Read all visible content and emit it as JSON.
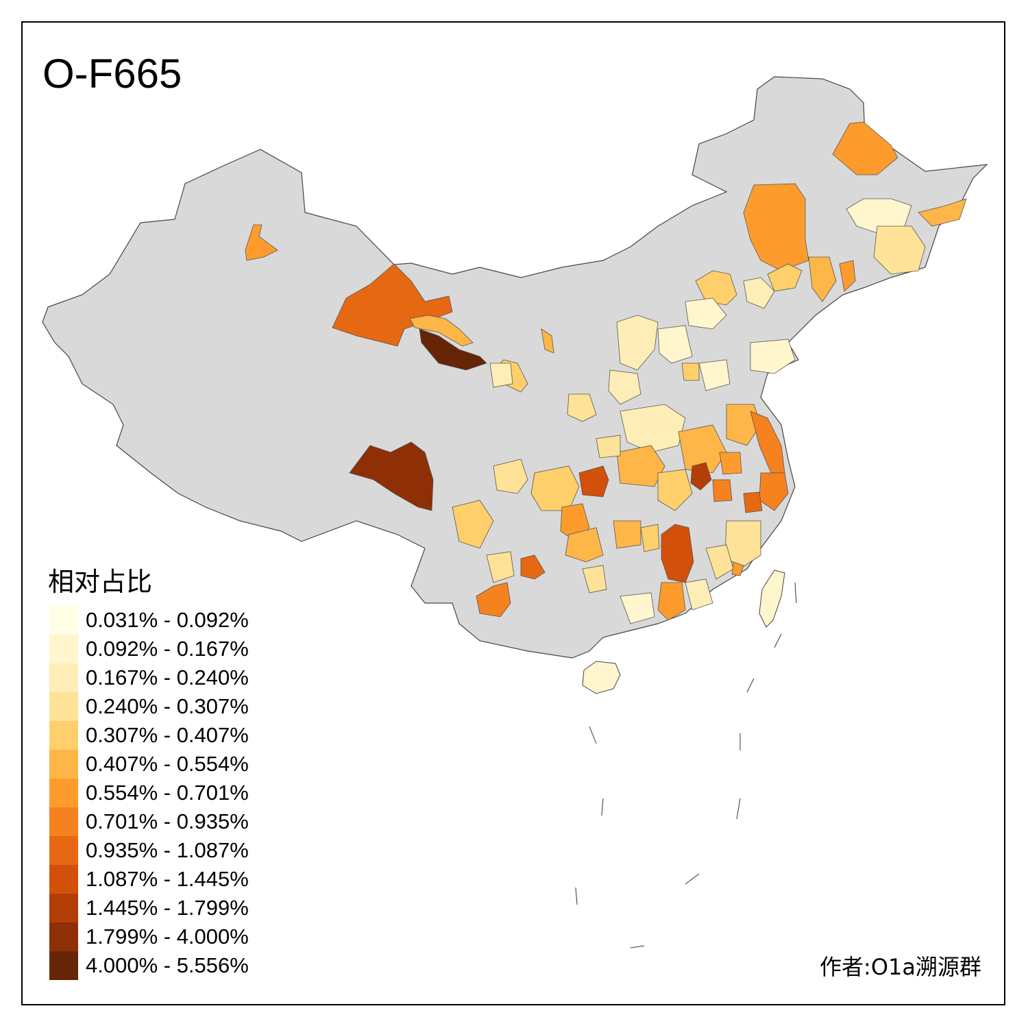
{
  "title": "O-F665",
  "legend": {
    "title": "相对占比",
    "classes": [
      {
        "label": "0.031% - 0.092%",
        "color": "#FFFFE5"
      },
      {
        "label": "0.092% - 0.167%",
        "color": "#FFF6CE"
      },
      {
        "label": "0.167% - 0.240%",
        "color": "#FEEDB6"
      },
      {
        "label": "0.240% - 0.307%",
        "color": "#FEE297"
      },
      {
        "label": "0.307% - 0.407%",
        "color": "#FECF6B"
      },
      {
        "label": "0.407% - 0.554%",
        "color": "#FEB648"
      },
      {
        "label": "0.554% - 0.701%",
        "color": "#FD9C2D"
      },
      {
        "label": "0.701% - 0.935%",
        "color": "#F5811F"
      },
      {
        "label": "0.935% - 1.087%",
        "color": "#E66813"
      },
      {
        "label": "1.087% - 1.445%",
        "color": "#D25009"
      },
      {
        "label": "1.445% - 1.799%",
        "color": "#B23D05"
      },
      {
        "label": "1.799% - 4.000%",
        "color": "#8E2F06"
      },
      {
        "label": "4.000% - 5.556%",
        "color": "#662506"
      }
    ]
  },
  "no_data_color": "#D9D9D9",
  "credit": "作者:O1a溯源群"
}
